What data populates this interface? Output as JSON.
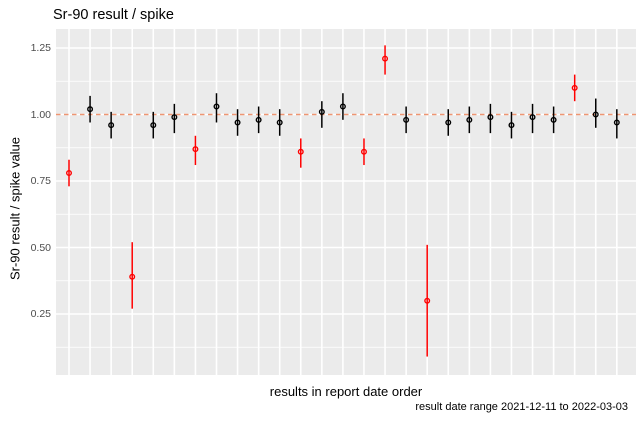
{
  "chart_data": {
    "type": "scatter",
    "subtype": "pointrange",
    "title": "Sr-90 result / spike",
    "ylabel": "Sr-90 result / spike value",
    "xlabel": "results in report date order",
    "caption": "result date range 2021-12-11 to 2022-03-03",
    "x_axis": "index 1..27, no tick labels shown",
    "ylim": [
      0.03,
      1.32
    ],
    "yticks": [
      1.25,
      1.0,
      0.75,
      0.5,
      0.25
    ],
    "y_minor_gridlines": [
      1.125,
      0.875,
      0.625,
      0.375,
      0.125
    ],
    "grid": "on",
    "legend": "none",
    "reference_line": {
      "y": 1.0,
      "linetype": "dashed",
      "color": "#EE9572"
    },
    "points": [
      {
        "x": 1,
        "value": 0.78,
        "lo": 0.73,
        "hi": 0.83,
        "c": "red"
      },
      {
        "x": 2,
        "value": 1.02,
        "lo": 0.97,
        "hi": 1.07,
        "c": "black"
      },
      {
        "x": 3,
        "value": 0.96,
        "lo": 0.91,
        "hi": 1.01,
        "c": "black"
      },
      {
        "x": 4,
        "value": 0.39,
        "lo": 0.27,
        "hi": 0.52,
        "c": "red"
      },
      {
        "x": 5,
        "value": 0.96,
        "lo": 0.91,
        "hi": 1.01,
        "c": "black"
      },
      {
        "x": 6,
        "value": 0.99,
        "lo": 0.93,
        "hi": 1.04,
        "c": "black"
      },
      {
        "x": 7,
        "value": 0.87,
        "lo": 0.81,
        "hi": 0.92,
        "c": "red"
      },
      {
        "x": 8,
        "value": 1.03,
        "lo": 0.97,
        "hi": 1.08,
        "c": "black"
      },
      {
        "x": 9,
        "value": 0.97,
        "lo": 0.92,
        "hi": 1.02,
        "c": "black"
      },
      {
        "x": 10,
        "value": 0.98,
        "lo": 0.93,
        "hi": 1.03,
        "c": "black"
      },
      {
        "x": 11,
        "value": 0.97,
        "lo": 0.92,
        "hi": 1.02,
        "c": "black"
      },
      {
        "x": 12,
        "value": 0.86,
        "lo": 0.8,
        "hi": 0.91,
        "c": "red"
      },
      {
        "x": 13,
        "value": 1.01,
        "lo": 0.95,
        "hi": 1.05,
        "c": "black"
      },
      {
        "x": 14,
        "value": 1.03,
        "lo": 0.98,
        "hi": 1.08,
        "c": "black"
      },
      {
        "x": 15,
        "value": 0.86,
        "lo": 0.81,
        "hi": 0.91,
        "c": "red"
      },
      {
        "x": 16,
        "value": 1.21,
        "lo": 1.15,
        "hi": 1.26,
        "c": "red"
      },
      {
        "x": 17,
        "value": 0.98,
        "lo": 0.93,
        "hi": 1.03,
        "c": "black"
      },
      {
        "x": 18,
        "value": 0.3,
        "lo": 0.09,
        "hi": 0.51,
        "c": "red"
      },
      {
        "x": 19,
        "value": 0.97,
        "lo": 0.92,
        "hi": 1.02,
        "c": "black"
      },
      {
        "x": 20,
        "value": 0.98,
        "lo": 0.93,
        "hi": 1.03,
        "c": "black"
      },
      {
        "x": 21,
        "value": 0.99,
        "lo": 0.93,
        "hi": 1.04,
        "c": "black"
      },
      {
        "x": 22,
        "value": 0.96,
        "lo": 0.91,
        "hi": 1.01,
        "c": "black"
      },
      {
        "x": 23,
        "value": 0.99,
        "lo": 0.93,
        "hi": 1.04,
        "c": "black"
      },
      {
        "x": 24,
        "value": 0.98,
        "lo": 0.93,
        "hi": 1.03,
        "c": "black"
      },
      {
        "x": 25,
        "value": 1.1,
        "lo": 1.05,
        "hi": 1.15,
        "c": "red"
      },
      {
        "x": 26,
        "value": 1.0,
        "lo": 0.95,
        "hi": 1.06,
        "c": "black"
      },
      {
        "x": 27,
        "value": 0.97,
        "lo": 0.91,
        "hi": 1.02,
        "c": "black"
      }
    ],
    "colors": {
      "black": "#000000",
      "red": "#FF0000",
      "panel_background": "#EBEBEB",
      "gridline": "#FFFFFF",
      "reference_dashed": "#EE9572",
      "tick_label": "#4d4d4d"
    }
  }
}
